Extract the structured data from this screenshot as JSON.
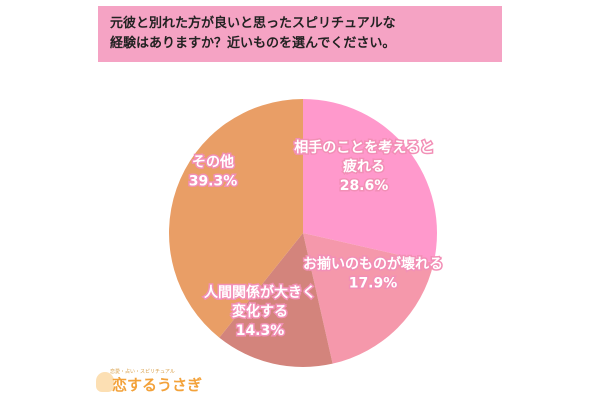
{
  "header": {
    "question": "元彼と別れた方が良いと思ったスピリチュアルな\n経験はありますか？近いものを選んでください。"
  },
  "brand": {
    "tagline": "恋愛・占い・スピリチュアル",
    "name": "恋するうさぎ"
  },
  "colors": {
    "banner": "#f5a3c4",
    "label_text": "#ffffff",
    "label_stroke": "#f28fb6"
  },
  "chart_data": {
    "type": "pie",
    "title": "元彼と別れた方が良いと思ったスピリチュアルな経験はありますか？近いものを選んでください。",
    "slices": [
      {
        "label": "相手のことを考えると疲れる",
        "value": 28.6,
        "value_text": "28.6%",
        "label_lines": [
          "相手のことを考えると",
          "疲れる"
        ],
        "color": "#ff99cc"
      },
      {
        "label": "お揃いのものが壊れる",
        "value": 17.9,
        "value_text": "17.9%",
        "label_lines": [
          "お揃いのものが壊れる"
        ],
        "color": "#f598ab"
      },
      {
        "label": "人間関係が大きく変化する",
        "value": 14.3,
        "value_text": "14.3%",
        "label_lines": [
          "人間関係が大きく",
          "変化する"
        ],
        "color": "#d3847c"
      },
      {
        "label": "その他",
        "value": 39.3,
        "value_text": "39.3%",
        "label_lines": [
          "その他"
        ],
        "color": "#e99e66"
      }
    ]
  }
}
